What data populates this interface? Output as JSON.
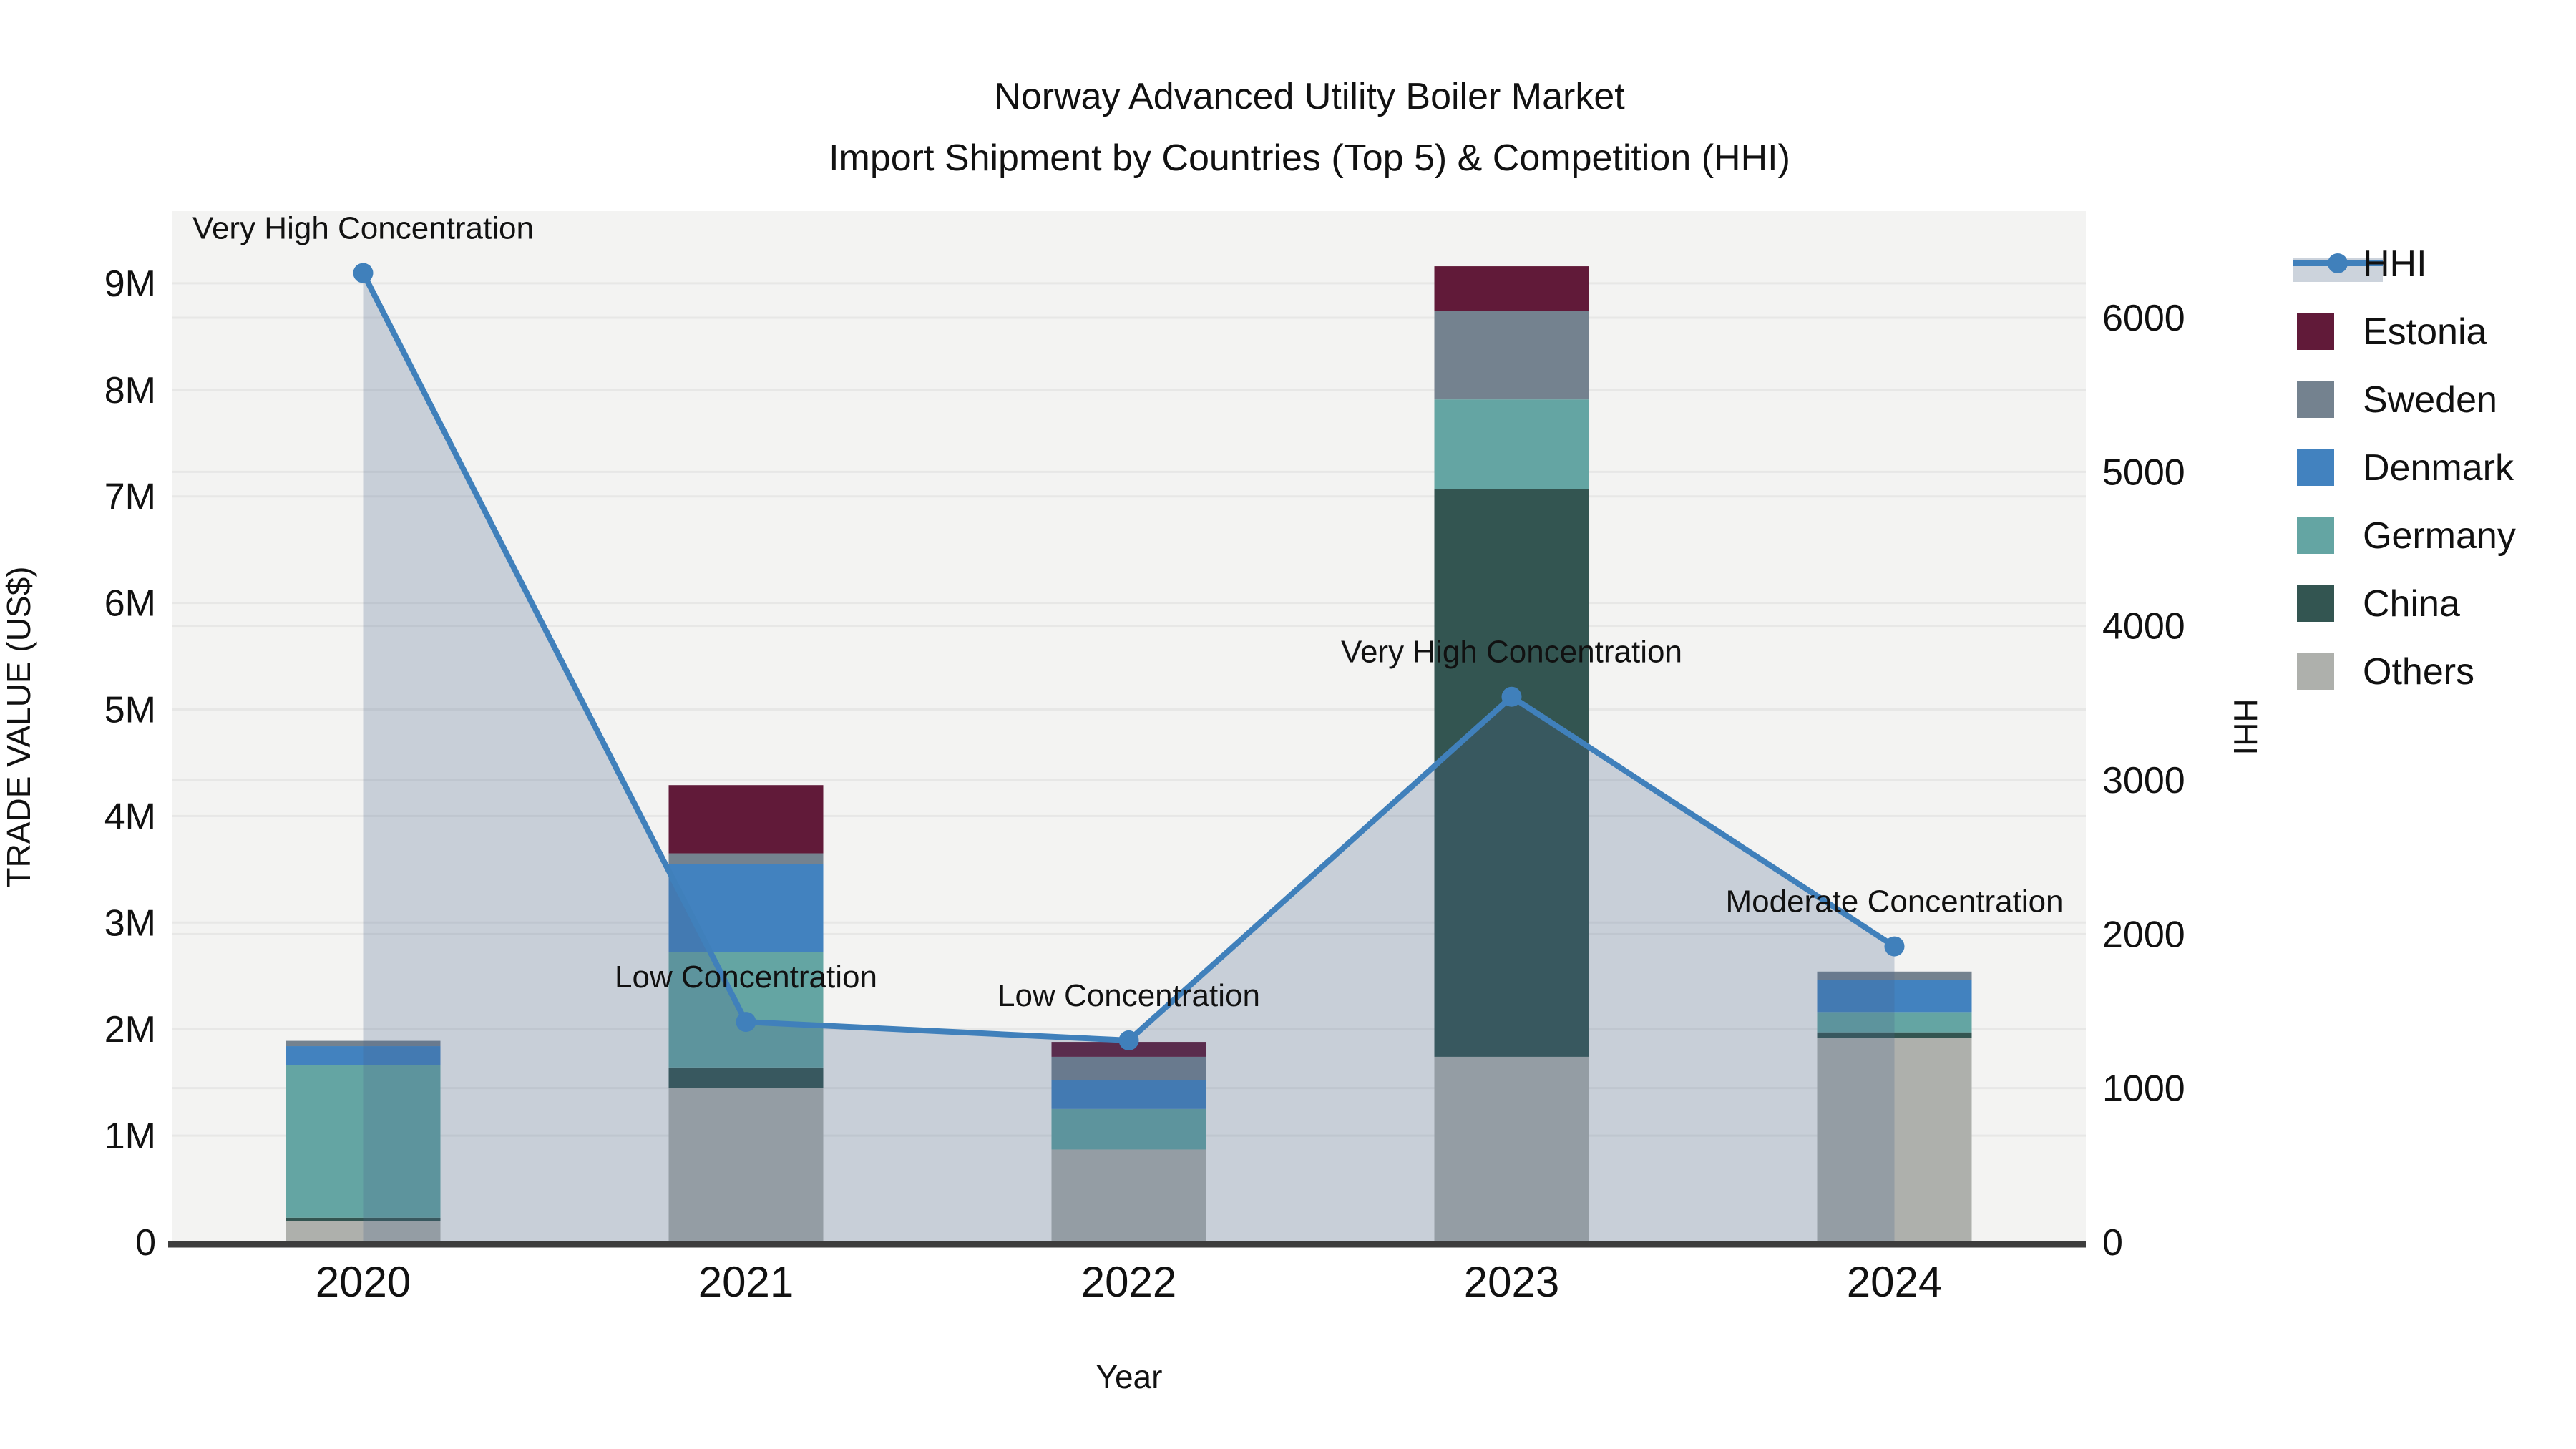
{
  "title": {
    "line1": "Norway Advanced Utility Boiler Market",
    "line2": "Import Shipment by Countries (Top 5) & Competition (HHI)"
  },
  "axes": {
    "x": {
      "label": "Year",
      "tick_labels": [
        "2020",
        "2021",
        "2022",
        "2023",
        "2024"
      ]
    },
    "y_left": {
      "label": "TRADE VALUE (US$)",
      "tick_labels": [
        "0",
        "1M",
        "2M",
        "3M",
        "4M",
        "5M",
        "6M",
        "7M",
        "8M",
        "9M"
      ],
      "tick_values_m": [
        0,
        1,
        2,
        3,
        4,
        5,
        6,
        7,
        8,
        9
      ],
      "max_m": 9.68
    },
    "y_right": {
      "label": "HHI",
      "tick_labels": [
        "0",
        "1000",
        "2000",
        "3000",
        "4000",
        "5000",
        "6000"
      ],
      "tick_values": [
        0,
        1000,
        2000,
        3000,
        4000,
        5000,
        6000
      ],
      "max": 6690
    }
  },
  "legend": {
    "entries": [
      "HHI",
      "Estonia",
      "Sweden",
      "Denmark",
      "Germany",
      "China",
      "Others"
    ]
  },
  "colors": {
    "plot_bg": "#f3f3f2",
    "grid": "#e7e7e6",
    "axis_line": "#3d3d3d",
    "hhi_line": "#4080bb",
    "hhi_fill": "rgba(70,100,140,0.25)",
    "legend_band": "#ccd3dc",
    "annotation_text": "#111111",
    "series": {
      "Estonia": "#611a39",
      "Sweden": "#74828f",
      "Denmark": "#4282bf",
      "Germany": "#64a5a3",
      "China": "#335551",
      "Others": "#aeb0ac"
    }
  },
  "chart_data": {
    "type": "bar+line",
    "title": "Norway Advanced Utility Boiler Market — Import Shipment by Countries (Top 5) & Competition (HHI)",
    "xlabel": "Year",
    "ylabel_left": "TRADE VALUE (US$)",
    "ylabel_right": "HHI",
    "units_bars": "millions US$",
    "categories": [
      "2020",
      "2021",
      "2022",
      "2023",
      "2024"
    ],
    "stack_order_bottom_to_top": [
      "Others",
      "China",
      "Germany",
      "Denmark",
      "Sweden",
      "Estonia"
    ],
    "series": [
      {
        "name": "Estonia",
        "values": [
          0,
          0.64,
          0.14,
          0.42,
          0
        ]
      },
      {
        "name": "Sweden",
        "values": [
          0.05,
          0.1,
          0.22,
          0.83,
          0.08
        ]
      },
      {
        "name": "Denmark",
        "values": [
          0.18,
          0.83,
          0.27,
          0,
          0.3
        ]
      },
      {
        "name": "Germany",
        "values": [
          1.43,
          1.08,
          0.38,
          0.84,
          0.19
        ]
      },
      {
        "name": "China",
        "values": [
          0.03,
          0.19,
          0,
          5.33,
          0.05
        ]
      },
      {
        "name": "Others",
        "values": [
          0.2,
          1.45,
          0.87,
          1.74,
          1.92
        ]
      }
    ],
    "totals_m": [
      1.89,
      4.29,
      1.88,
      9.16,
      2.54
    ],
    "hhi": {
      "name": "HHI",
      "values": [
        6290,
        1430,
        1310,
        3540,
        1920
      ],
      "style": "line+markers+area"
    },
    "annotations": [
      {
        "category": "2020",
        "text": "Very High Concentration"
      },
      {
        "category": "2021",
        "text": "Low Concentration"
      },
      {
        "category": "2022",
        "text": "Low Concentration"
      },
      {
        "category": "2023",
        "text": "Very High Concentration"
      },
      {
        "category": "2024",
        "text": "Moderate Concentration"
      }
    ],
    "ylim_left_m": [
      0,
      9.68
    ],
    "ylim_right": [
      0,
      6690
    ],
    "grid": true,
    "legend_position": "right"
  }
}
